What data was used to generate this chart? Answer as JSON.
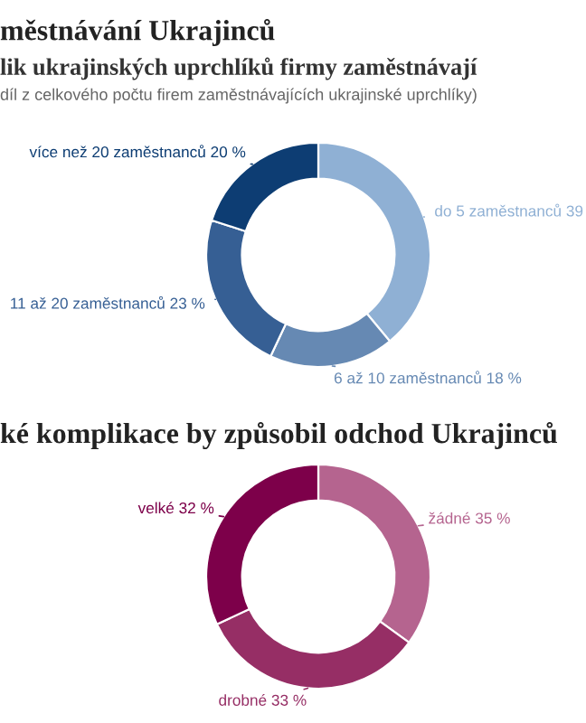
{
  "chart_data": [
    {
      "type": "donut",
      "title": "městnávání Ukrajinců",
      "subtitle": "lik ukrajinských uprchlíků firmy zaměstnávají",
      "annotations": [
        "díl z celkového počtu firem zaměstnávajících ukrajinské uprchlíky)"
      ],
      "categories": [
        "do 5 zaměstnanců",
        "6 až 10 zaměstnanců",
        "11 až 20 zaměstnanců",
        "více než 20 zaměstnanců"
      ],
      "values": [
        39,
        18,
        23,
        20
      ],
      "colors": [
        "#8fb0d4",
        "#6689b3",
        "#365f94",
        "#0d3d73"
      ],
      "value_labels": [
        "39",
        "18 %",
        "23 %",
        "20 %"
      ]
    },
    {
      "type": "donut",
      "title": "ké komplikace by způsobil odchod Ukrajinců",
      "categories": [
        "žádné",
        "drobné",
        "velké"
      ],
      "values": [
        35,
        33,
        32
      ],
      "colors": [
        "#b5648f",
        "#962e65",
        "#7d004a"
      ],
      "value_labels": [
        "35 %",
        "33 %",
        "32 %"
      ]
    }
  ]
}
